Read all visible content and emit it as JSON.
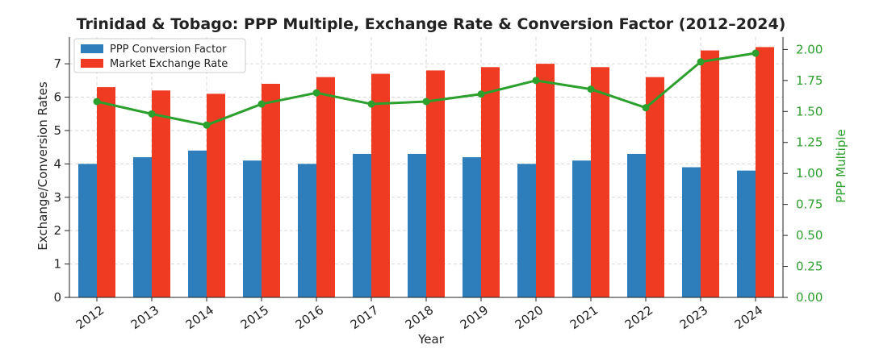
{
  "chart_data": {
    "type": "bar",
    "title": "Trinidad & Tobago: PPP Multiple, Exchange Rate & Conversion Factor (2012–2024)",
    "xlabel": "Year",
    "ylabel": "Exchange/Conversion Rates",
    "y2label": "PPP Multiple",
    "categories": [
      "2012",
      "2013",
      "2014",
      "2015",
      "2016",
      "2017",
      "2018",
      "2019",
      "2020",
      "2021",
      "2022",
      "2023",
      "2024"
    ],
    "ylim": [
      0,
      7.8
    ],
    "y2lim": [
      0,
      2.1
    ],
    "yticks": [
      "0",
      "1",
      "2",
      "3",
      "4",
      "5",
      "6",
      "7"
    ],
    "y2ticks": [
      "0.00",
      "0.25",
      "0.50",
      "0.75",
      "1.00",
      "1.25",
      "1.50",
      "1.75",
      "2.00"
    ],
    "grid": true,
    "legend_position": "top-left",
    "series": [
      {
        "name": "PPP Conversion Factor",
        "axis": "left",
        "kind": "bar",
        "color": "#2e7ebc",
        "values": [
          4.0,
          4.2,
          4.4,
          4.1,
          4.0,
          4.3,
          4.3,
          4.2,
          4.0,
          4.1,
          4.3,
          3.9,
          3.8
        ]
      },
      {
        "name": "Market Exchange Rate",
        "axis": "left",
        "kind": "bar",
        "color": "#ee3b22",
        "values": [
          6.3,
          6.2,
          6.1,
          6.4,
          6.6,
          6.7,
          6.8,
          6.9,
          7.0,
          6.9,
          6.6,
          7.4,
          7.5
        ]
      },
      {
        "axis": "right",
        "kind": "line",
        "color": "#2ca02c",
        "values": [
          1.58,
          1.48,
          1.39,
          1.56,
          1.65,
          1.56,
          1.58,
          1.64,
          1.75,
          1.68,
          1.53,
          1.9,
          1.97
        ]
      }
    ]
  }
}
